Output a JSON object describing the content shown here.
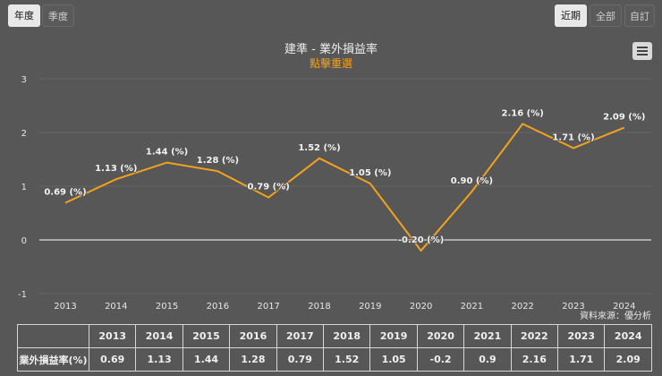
{
  "period_toggle": {
    "annual": "年度",
    "quarterly": "季度"
  },
  "range_toggle": {
    "recent": "近期",
    "all": "全部",
    "custom": "自訂"
  },
  "menu_icon": "hamburger-menu-icon",
  "colors": {
    "line": "#f4a21c",
    "subtitle": "#f4a21c",
    "background": "#575757"
  },
  "chart_data": {
    "type": "line",
    "title": "建準 - 業外損益率",
    "subtitle": "點擊重選",
    "categories": [
      "2013",
      "2014",
      "2015",
      "2016",
      "2017",
      "2018",
      "2019",
      "2020",
      "2021",
      "2022",
      "2023",
      "2024"
    ],
    "series": [
      {
        "name": "業外損益率(%)",
        "values": [
          0.69,
          1.13,
          1.44,
          1.28,
          0.79,
          1.52,
          1.05,
          -0.2,
          0.9,
          2.16,
          1.71,
          2.09
        ]
      }
    ],
    "data_labels": [
      "0.69 (%)",
      "1.13 (%)",
      "1.44 (%)",
      "1.28 (%)",
      "0.79 (%)",
      "1.52 (%)",
      "1.05 (%)",
      "-0.20 (%)",
      "0.90 (%)",
      "2.16 (%)",
      "1.71 (%)",
      "2.09 (%)"
    ],
    "ylim": [
      -1,
      3
    ],
    "yticks": [
      "-1",
      "0",
      "1",
      "2",
      "3"
    ],
    "xlabel": "",
    "ylabel": "",
    "source": "資料來源：優分析"
  },
  "table": {
    "row_label": "業外損益率(%)",
    "years": [
      "2013",
      "2014",
      "2015",
      "2016",
      "2017",
      "2018",
      "2019",
      "2020",
      "2021",
      "2022",
      "2023",
      "2024"
    ],
    "values": [
      "0.69",
      "1.13",
      "1.44",
      "1.28",
      "0.79",
      "1.52",
      "1.05",
      "-0.2",
      "0.9",
      "2.16",
      "1.71",
      "2.09"
    ]
  }
}
